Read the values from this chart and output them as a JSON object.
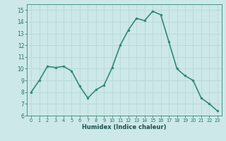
{
  "xlabel": "Humidex (Indice chaleur)",
  "x": [
    0,
    1,
    2,
    3,
    4,
    5,
    6,
    7,
    8,
    9,
    10,
    11,
    12,
    13,
    14,
    15,
    16,
    17,
    18,
    19,
    20,
    21,
    22,
    23
  ],
  "y": [
    8.0,
    9.0,
    10.2,
    10.1,
    10.2,
    9.8,
    8.5,
    7.5,
    8.2,
    8.6,
    10.1,
    12.0,
    13.3,
    14.3,
    14.1,
    14.9,
    14.6,
    12.3,
    10.0,
    9.4,
    9.0,
    7.5,
    7.0,
    6.4
  ],
  "line_color": "#2e8b74",
  "marker": "o",
  "marker_size": 2,
  "xlim": [
    -0.5,
    23.5
  ],
  "ylim": [
    6,
    15.5
  ],
  "yticks": [
    6,
    7,
    8,
    9,
    10,
    11,
    12,
    13,
    14,
    15
  ],
  "xticks": [
    0,
    1,
    2,
    3,
    4,
    5,
    6,
    7,
    8,
    9,
    10,
    11,
    12,
    13,
    14,
    15,
    16,
    17,
    18,
    19,
    20,
    21,
    22,
    23
  ],
  "bg_color": "#cce8e8",
  "grid_color": "#b8d8d8",
  "line_width": 1.2,
  "tick_label_color": "#2e6e6e",
  "xlabel_color": "#1a5050"
}
